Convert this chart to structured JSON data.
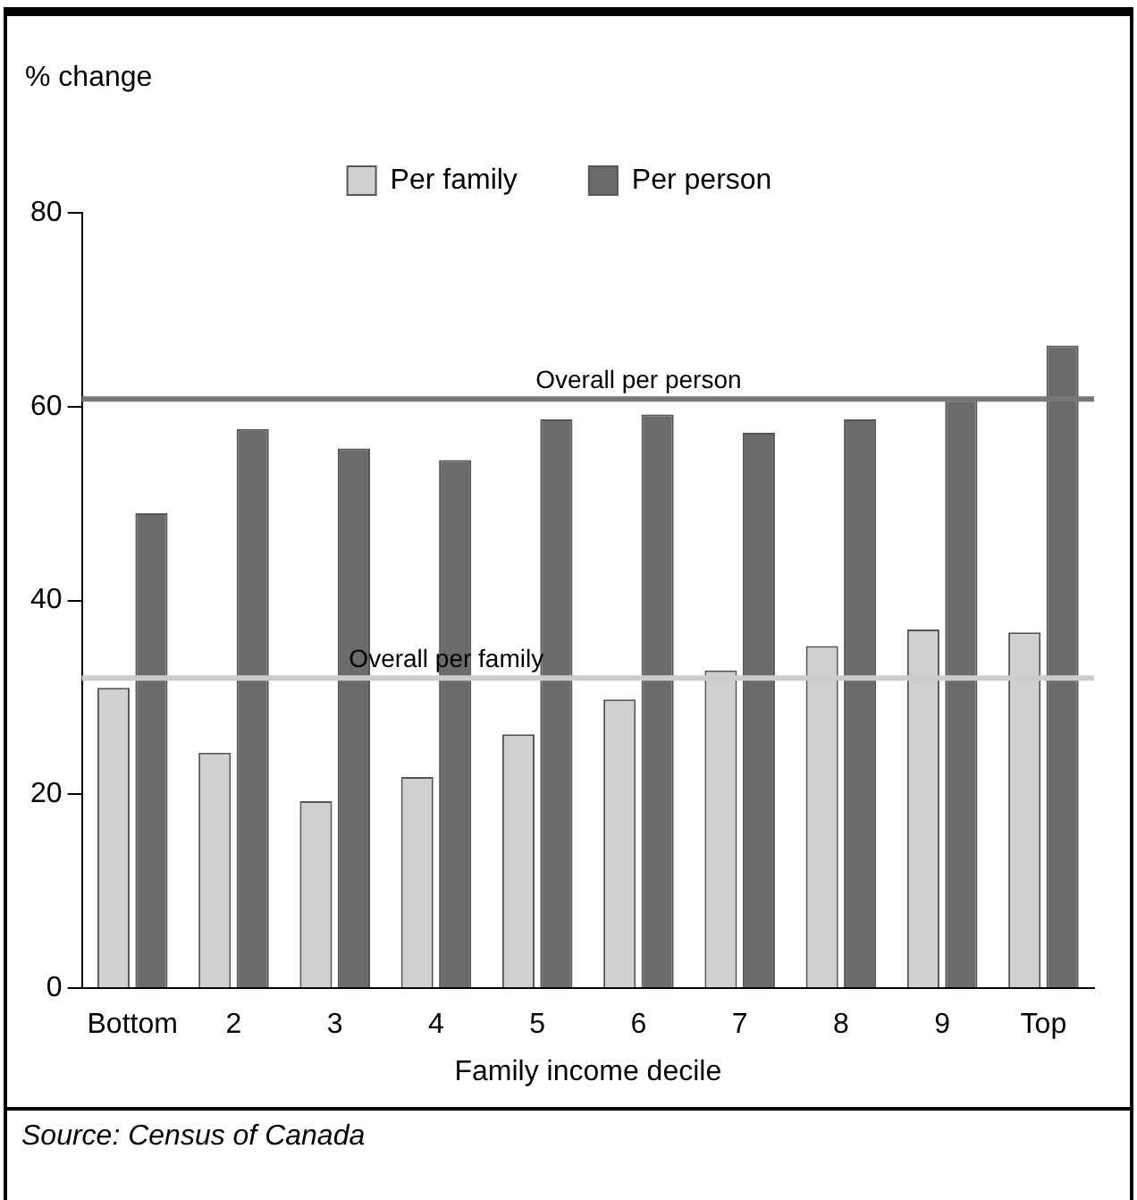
{
  "chart_data": {
    "type": "bar",
    "ylabel": "% change",
    "xlabel": "Family income decile",
    "categories": [
      "Bottom",
      "2",
      "3",
      "4",
      "5",
      "6",
      "7",
      "8",
      "9",
      "Top"
    ],
    "series": [
      {
        "name": "Per family",
        "color": "#d0d0d0",
        "values": [
          31,
          24.3,
          19.3,
          21.8,
          26.2,
          29.8,
          32.8,
          35.3,
          37,
          36.7
        ]
      },
      {
        "name": "Per person",
        "color": "#6b6b6b",
        "values": [
          49,
          57.7,
          55.7,
          54.5,
          58.7,
          59.2,
          57.3,
          58.7,
          60.7,
          66.3
        ]
      }
    ],
    "ylim": [
      0,
      80
    ],
    "yticks": [
      0,
      20,
      40,
      60,
      80
    ],
    "grid": false,
    "legend": "top",
    "ref_lines": [
      {
        "axis": "y",
        "value": 60.8,
        "label": "Overall per person",
        "color": "#777777"
      },
      {
        "axis": "y",
        "value": 32,
        "label": "Overall per family",
        "color": "#cccccc"
      }
    ],
    "annotations": [
      "Source: Census of Canada"
    ]
  }
}
